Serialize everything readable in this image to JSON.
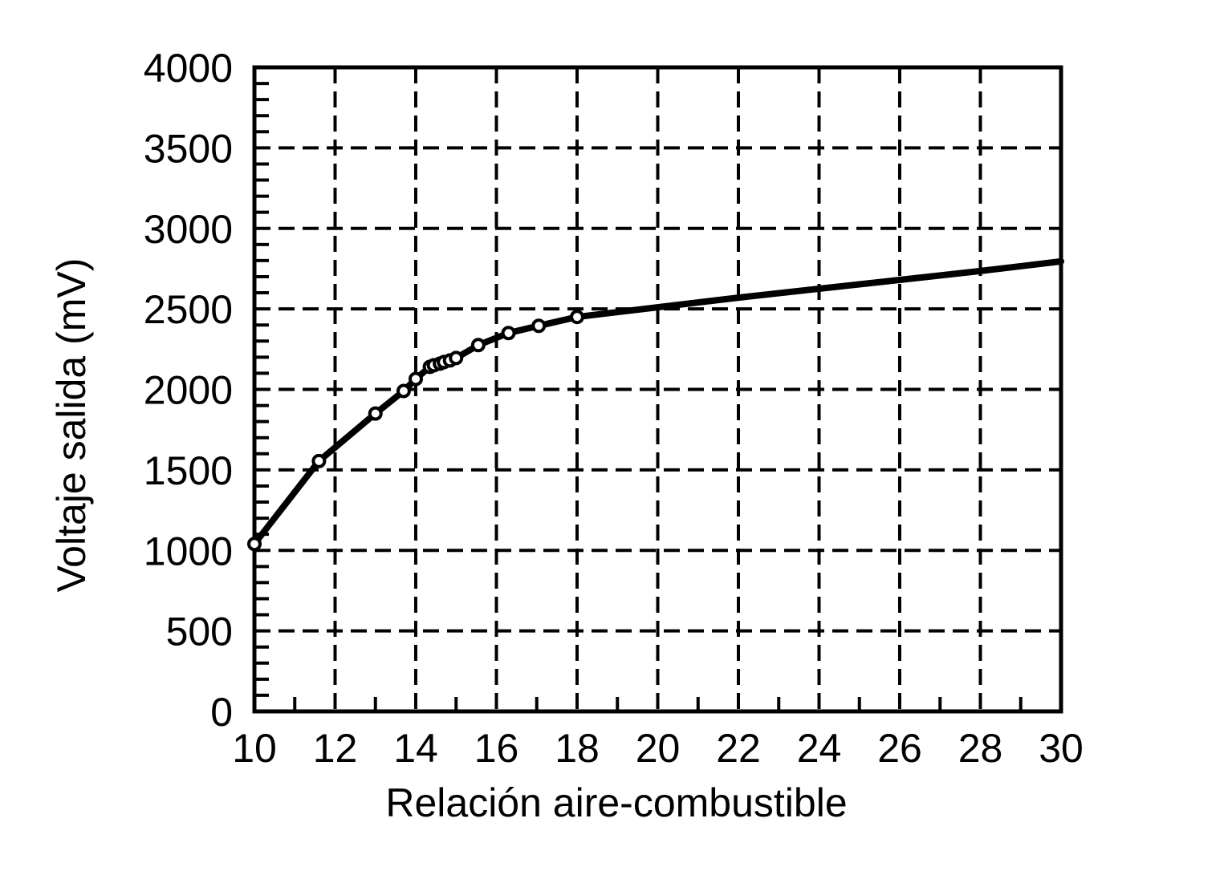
{
  "chart_data": {
    "type": "line",
    "title": "",
    "xlabel": "Relación aire-combustible",
    "ylabel": "Voltaje salida (mV)",
    "xlim": [
      10,
      30
    ],
    "ylim": [
      0,
      4000
    ],
    "x_ticks": [
      10,
      12,
      14,
      16,
      18,
      20,
      22,
      24,
      26,
      28,
      30
    ],
    "y_ticks": [
      0,
      500,
      1000,
      1500,
      2000,
      2500,
      3000,
      3500,
      4000
    ],
    "grid": true,
    "grid_style": "dashed",
    "legend": null,
    "series": [
      {
        "name": "Voltaje salida",
        "color": "#000000",
        "markers": [
          {
            "x": 10.0,
            "y": 1040
          },
          {
            "x": 11.6,
            "y": 1555
          },
          {
            "x": 13.0,
            "y": 1850
          },
          {
            "x": 13.7,
            "y": 1990
          },
          {
            "x": 14.0,
            "y": 2065
          },
          {
            "x": 14.35,
            "y": 2140
          },
          {
            "x": 14.45,
            "y": 2150
          },
          {
            "x": 14.6,
            "y": 2160
          },
          {
            "x": 14.7,
            "y": 2170
          },
          {
            "x": 14.85,
            "y": 2180
          },
          {
            "x": 15.0,
            "y": 2195
          },
          {
            "x": 15.55,
            "y": 2275
          },
          {
            "x": 16.3,
            "y": 2350
          },
          {
            "x": 17.05,
            "y": 2395
          },
          {
            "x": 18.0,
            "y": 2450
          }
        ],
        "line_extension": [
          {
            "x": 18.0,
            "y": 2450
          },
          {
            "x": 20.0,
            "y": 2510
          },
          {
            "x": 22.0,
            "y": 2570
          },
          {
            "x": 24.0,
            "y": 2625
          },
          {
            "x": 26.0,
            "y": 2680
          },
          {
            "x": 28.0,
            "y": 2735
          },
          {
            "x": 30.0,
            "y": 2795
          }
        ]
      }
    ]
  }
}
